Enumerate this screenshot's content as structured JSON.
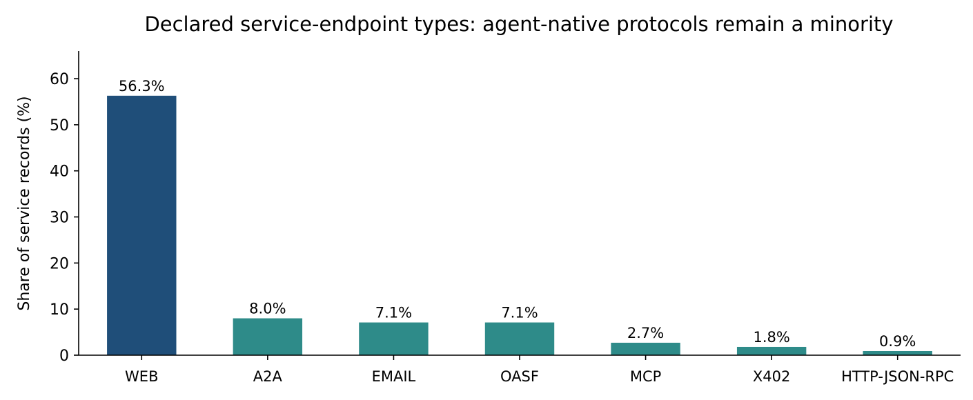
{
  "chart_data": {
    "type": "bar",
    "title": "Declared service-endpoint types: agent-native protocols remain a minority",
    "xlabel": "",
    "ylabel": "Share of service records (%)",
    "categories": [
      "WEB",
      "A2A",
      "EMAIL",
      "OASF",
      "MCP",
      "X402",
      "HTTP-JSON-RPC"
    ],
    "values": [
      56.3,
      8.0,
      7.1,
      7.1,
      2.7,
      1.8,
      0.9
    ],
    "data_labels": [
      "56.3%",
      "8.0%",
      "7.1%",
      "7.1%",
      "2.7%",
      "1.8%",
      "0.9%"
    ],
    "ylim": [
      0,
      66
    ],
    "yticks": [
      0,
      10,
      20,
      30,
      40,
      50,
      60
    ],
    "grid": false,
    "legend": "none",
    "colors": {
      "highlight": "#1f4e79",
      "default": "#2e8b89"
    },
    "highlight_category": "WEB"
  }
}
